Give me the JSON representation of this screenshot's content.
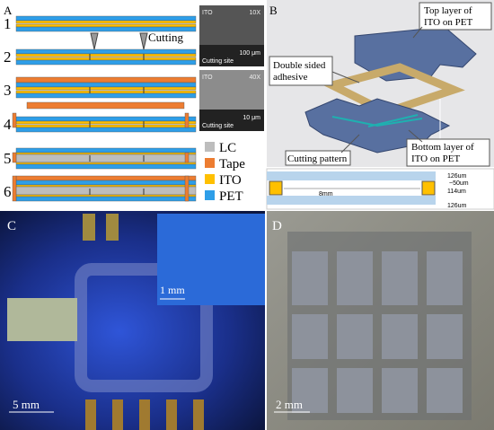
{
  "panel_a": {
    "label": "A",
    "steps": [
      "1",
      "2",
      "3",
      "4",
      "5",
      "6"
    ],
    "cutting": "Cutting",
    "micrographs": [
      {
        "material": "ITO",
        "magnification": "10X",
        "scale": "100 μm",
        "site": "Cutting site"
      },
      {
        "material": "ITO",
        "magnification": "40X",
        "scale": "10 μm",
        "site": "Cutting site"
      }
    ],
    "legend": [
      {
        "label": "LC",
        "color": "#bdbdbd"
      },
      {
        "label": "Tape",
        "color": "#ed7d31"
      },
      {
        "label": "ITO",
        "color": "#ffc000"
      },
      {
        "label": "PET",
        "color": "#2e9ee8"
      }
    ]
  },
  "panel_b": {
    "label": "B",
    "top_layer": [
      "Top layer of",
      "ITO on PET"
    ],
    "adhesive": [
      "Double sided",
      "adhesive"
    ],
    "cutting_pattern": "Cutting pattern",
    "bottom_layer": [
      "Bottom layer of",
      "ITO on PET"
    ],
    "dimensions": {
      "top": "126um",
      "gap": "~50um",
      "spacer": "114um",
      "width": "8mm",
      "bottom": "126um"
    }
  },
  "panel_c": {
    "label": "C",
    "inset_scale": "1 mm",
    "scale": "5 mm"
  },
  "panel_d": {
    "label": "D",
    "scale": "2 mm"
  }
}
